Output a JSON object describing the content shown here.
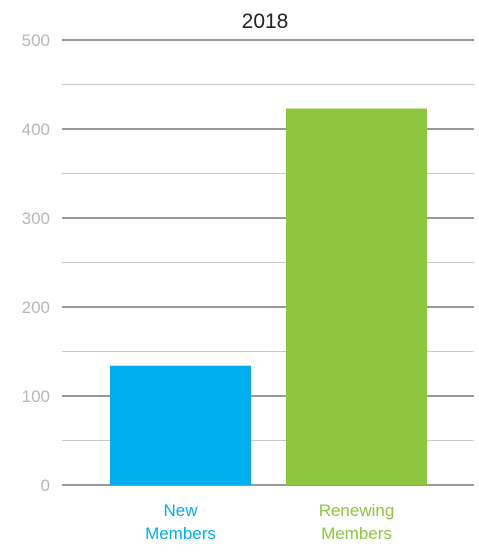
{
  "chart_data": {
    "type": "bar",
    "title": "2018",
    "xlabel": "",
    "ylabel": "",
    "categories": [
      {
        "lines": [
          "New",
          "Members"
        ],
        "color": "#00aeef"
      },
      {
        "lines": [
          "Renewing",
          "Members"
        ],
        "color": "#8dc63f"
      }
    ],
    "values": [
      134,
      423
    ],
    "ylim": [
      0,
      500
    ],
    "yticks": [
      0,
      100,
      200,
      300,
      400,
      500
    ],
    "minor_gridlines": [
      50,
      150,
      250,
      350,
      450
    ],
    "grid": true,
    "colors": {
      "major_grid": "#333333",
      "minor_grid": "#c8c8c8",
      "tick_label": "#b8b8b8",
      "title": "#222222"
    }
  }
}
